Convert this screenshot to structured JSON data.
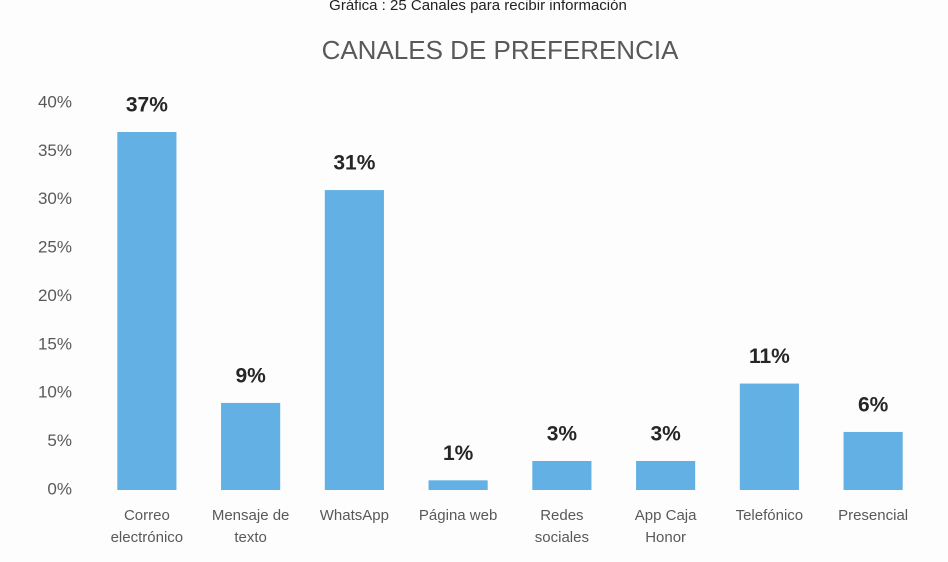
{
  "chart_data": {
    "type": "bar",
    "caption": "Gráfica : 25 Canales para recibir información",
    "title": "CANALES DE PREFERENCIA",
    "categories": [
      "Correo electrónico",
      "Mensaje de texto",
      "WhatsApp",
      "Página web",
      "Redes sociales",
      "App Caja Honor",
      "Telefónico",
      "Presencial"
    ],
    "values": [
      37,
      9,
      31,
      1,
      3,
      3,
      11,
      6
    ],
    "value_labels": [
      "37%",
      "9%",
      "31%",
      "1%",
      "3%",
      "3%",
      "11%",
      "6%"
    ],
    "color": "#63b0e4",
    "ylim": [
      0,
      40
    ],
    "yticks": [
      {
        "value": 0,
        "label": "0%"
      },
      {
        "value": 5,
        "label": "5%"
      },
      {
        "value": 10,
        "label": "10%"
      },
      {
        "value": 15,
        "label": "15%"
      },
      {
        "value": 20,
        "label": "20%"
      },
      {
        "value": 25,
        "label": "25%"
      },
      {
        "value": 30,
        "label": "30%"
      },
      {
        "value": 35,
        "label": "35%"
      },
      {
        "value": 40,
        "label": "40%"
      }
    ],
    "grid": false
  }
}
